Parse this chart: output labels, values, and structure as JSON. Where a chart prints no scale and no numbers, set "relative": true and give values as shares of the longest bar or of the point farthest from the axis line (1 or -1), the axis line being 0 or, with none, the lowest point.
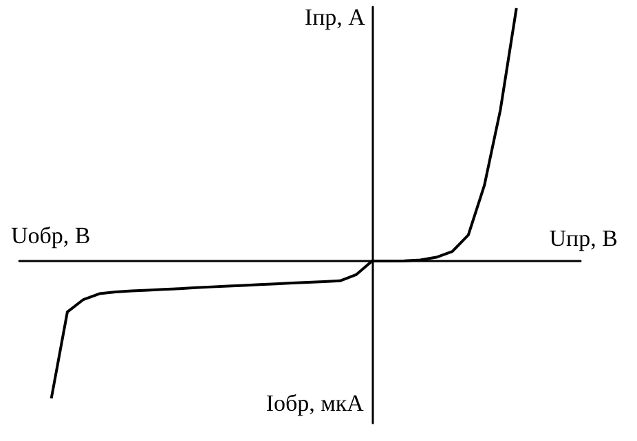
{
  "chart_data": {
    "type": "line",
    "relative": true,
    "xlabel": "Uпр, B",
    "ylabel": "Iпр, A",
    "annotations": [
      "Uобр, B",
      "Iобр, мкА"
    ],
    "color": "#000000",
    "marker": "none",
    "grid": false,
    "categories": [
      null,
      null,
      null,
      null,
      null,
      null,
      null,
      null,
      null,
      null,
      null,
      null,
      null,
      null,
      null,
      null,
      null,
      null,
      null,
      null,
      null,
      null,
      null,
      null,
      null,
      null,
      null,
      null,
      null,
      null,
      null,
      null,
      null,
      null,
      null,
      null
    ],
    "values": [
      null,
      null,
      -0.543,
      -0.201,
      -0.152,
      -0.129,
      -0.122,
      -0.118,
      -0.115,
      -0.112,
      -0.109,
      -0.105,
      -0.102,
      -0.099,
      -0.096,
      -0.093,
      -0.09,
      -0.087,
      -0.084,
      -0.081,
      -0.078,
      -0.054,
      0,
      0,
      0.001,
      0.004,
      0.015,
      0.038,
      0.103,
      0.299,
      0.598,
      1,
      null,
      null,
      null,
      null
    ]
  }
}
